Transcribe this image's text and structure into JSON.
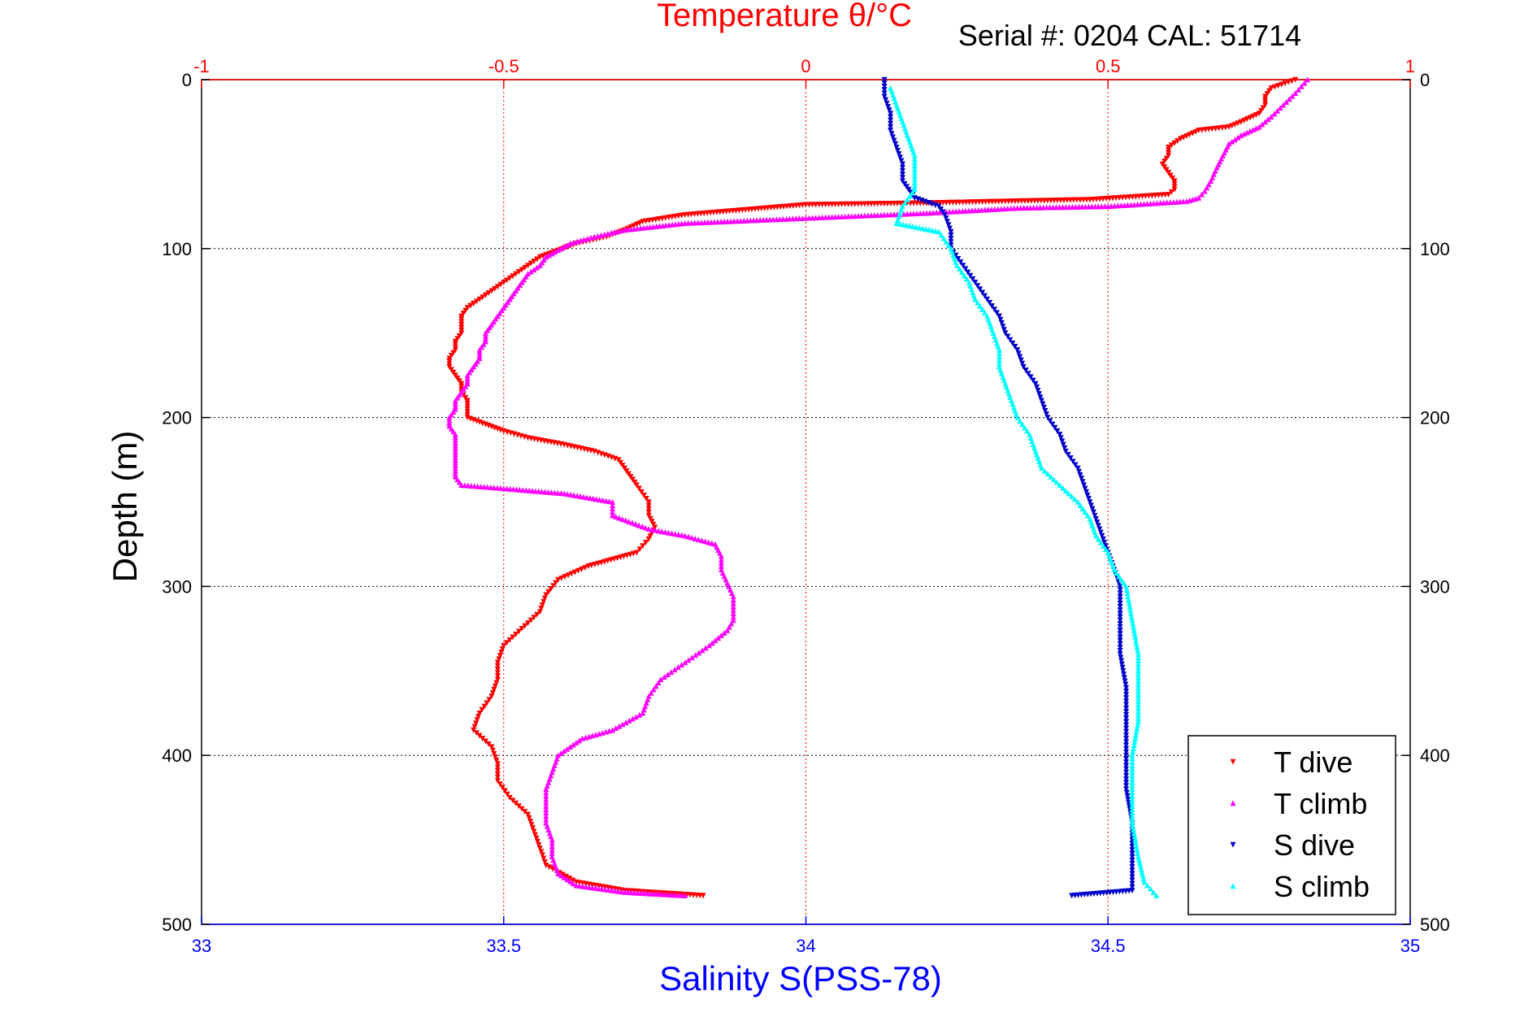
{
  "chart_data": {
    "type": "scatter",
    "title": "Temperature θ/°C",
    "annotation": "Serial #: 0204  CAL: 51714",
    "xlabel_top": "Temperature θ/°C",
    "xlabel_bottom": "Salinity S(PSS-78)",
    "ylabel": "Depth (m)",
    "top_axis": {
      "label": "Temperature θ/°C",
      "range": [
        -1,
        1
      ],
      "ticks": [
        "-1",
        "-0.5",
        "0",
        "0.5",
        "1"
      ],
      "color": "#ff0000"
    },
    "bottom_axis": {
      "label": "Salinity S(PSS-78)",
      "range": [
        33,
        35
      ],
      "ticks": [
        "33",
        "33.5",
        "34",
        "34.5",
        "35"
      ],
      "color": "#0000ff"
    },
    "y_axis": {
      "label": "Depth (m)",
      "range": [
        0,
        500
      ],
      "reversed": true,
      "ticks": [
        "0",
        "100",
        "200",
        "300",
        "400",
        "500"
      ]
    },
    "grid": true,
    "legend_position": "bottom-right",
    "series": [
      {
        "name": "T dive",
        "axis": "temperature",
        "color": "#ff0000",
        "marker": "triangle-down",
        "points": [
          [
            0.81,
            0
          ],
          [
            0.77,
            5
          ],
          [
            0.76,
            10
          ],
          [
            0.76,
            15
          ],
          [
            0.75,
            20
          ],
          [
            0.72,
            25
          ],
          [
            0.7,
            28
          ],
          [
            0.65,
            30
          ],
          [
            0.62,
            35
          ],
          [
            0.6,
            40
          ],
          [
            0.6,
            45
          ],
          [
            0.59,
            50
          ],
          [
            0.6,
            55
          ],
          [
            0.61,
            60
          ],
          [
            0.61,
            65
          ],
          [
            0.6,
            68
          ],
          [
            0.47,
            71
          ],
          [
            0.33,
            72
          ],
          [
            0.2,
            73
          ],
          [
            0.0,
            74
          ],
          [
            -0.1,
            77
          ],
          [
            -0.2,
            80
          ],
          [
            -0.27,
            84
          ],
          [
            -0.3,
            89
          ],
          [
            -0.33,
            93
          ],
          [
            -0.38,
            97
          ],
          [
            -0.41,
            101
          ],
          [
            -0.44,
            105
          ],
          [
            -0.46,
            110
          ],
          [
            -0.48,
            115
          ],
          [
            -0.5,
            120
          ],
          [
            -0.52,
            125
          ],
          [
            -0.54,
            130
          ],
          [
            -0.56,
            135
          ],
          [
            -0.57,
            140
          ],
          [
            -0.57,
            145
          ],
          [
            -0.57,
            150
          ],
          [
            -0.58,
            155
          ],
          [
            -0.58,
            160
          ],
          [
            -0.59,
            165
          ],
          [
            -0.59,
            170
          ],
          [
            -0.58,
            175
          ],
          [
            -0.57,
            180
          ],
          [
            -0.57,
            185
          ],
          [
            -0.56,
            190
          ],
          [
            -0.56,
            195
          ],
          [
            -0.56,
            200
          ],
          [
            -0.53,
            204
          ],
          [
            -0.5,
            208
          ],
          [
            -0.46,
            212
          ],
          [
            -0.4,
            216
          ],
          [
            -0.35,
            220
          ],
          [
            -0.31,
            225
          ],
          [
            -0.3,
            230
          ],
          [
            -0.29,
            235
          ],
          [
            -0.28,
            240
          ],
          [
            -0.26,
            250
          ],
          [
            -0.26,
            258
          ],
          [
            -0.25,
            265
          ],
          [
            -0.26,
            272
          ],
          [
            -0.28,
            280
          ],
          [
            -0.36,
            288
          ],
          [
            -0.41,
            296
          ],
          [
            -0.43,
            305
          ],
          [
            -0.44,
            315
          ],
          [
            -0.47,
            325
          ],
          [
            -0.5,
            335
          ],
          [
            -0.51,
            345
          ],
          [
            -0.51,
            355
          ],
          [
            -0.52,
            365
          ],
          [
            -0.54,
            375
          ],
          [
            -0.55,
            385
          ],
          [
            -0.52,
            395
          ],
          [
            -0.51,
            405
          ],
          [
            -0.51,
            415
          ],
          [
            -0.49,
            425
          ],
          [
            -0.46,
            435
          ],
          [
            -0.45,
            445
          ],
          [
            -0.44,
            455
          ],
          [
            -0.43,
            465
          ],
          [
            -0.38,
            475
          ],
          [
            -0.3,
            480
          ],
          [
            -0.17,
            483
          ]
        ]
      },
      {
        "name": "T climb",
        "axis": "temperature",
        "color": "#ff00ff",
        "marker": "triangle-up",
        "points": [
          [
            0.83,
            0
          ],
          [
            0.81,
            8
          ],
          [
            0.79,
            15
          ],
          [
            0.77,
            22
          ],
          [
            0.75,
            28
          ],
          [
            0.72,
            33
          ],
          [
            0.7,
            38
          ],
          [
            0.69,
            45
          ],
          [
            0.68,
            52
          ],
          [
            0.67,
            60
          ],
          [
            0.66,
            66
          ],
          [
            0.65,
            70
          ],
          [
            0.63,
            72
          ],
          [
            0.5,
            75
          ],
          [
            0.35,
            76
          ],
          [
            0.2,
            79
          ],
          [
            0.0,
            82
          ],
          [
            -0.2,
            85
          ],
          [
            -0.3,
            89
          ],
          [
            -0.35,
            93
          ],
          [
            -0.39,
            97
          ],
          [
            -0.41,
            101
          ],
          [
            -0.43,
            105
          ],
          [
            -0.44,
            110
          ],
          [
            -0.46,
            115
          ],
          [
            -0.47,
            120
          ],
          [
            -0.48,
            125
          ],
          [
            -0.49,
            130
          ],
          [
            -0.5,
            135
          ],
          [
            -0.51,
            140
          ],
          [
            -0.52,
            145
          ],
          [
            -0.53,
            150
          ],
          [
            -0.53,
            155
          ],
          [
            -0.54,
            160
          ],
          [
            -0.54,
            165
          ],
          [
            -0.55,
            170
          ],
          [
            -0.56,
            175
          ],
          [
            -0.56,
            180
          ],
          [
            -0.57,
            185
          ],
          [
            -0.58,
            190
          ],
          [
            -0.58,
            195
          ],
          [
            -0.59,
            200
          ],
          [
            -0.59,
            205
          ],
          [
            -0.58,
            210
          ],
          [
            -0.58,
            215
          ],
          [
            -0.58,
            220
          ],
          [
            -0.58,
            225
          ],
          [
            -0.58,
            230
          ],
          [
            -0.58,
            235
          ],
          [
            -0.57,
            240
          ],
          [
            -0.5,
            242
          ],
          [
            -0.4,
            245
          ],
          [
            -0.32,
            250
          ],
          [
            -0.32,
            258
          ],
          [
            -0.26,
            266
          ],
          [
            -0.2,
            270
          ],
          [
            -0.15,
            275
          ],
          [
            -0.14,
            282
          ],
          [
            -0.14,
            290
          ],
          [
            -0.13,
            298
          ],
          [
            -0.12,
            306
          ],
          [
            -0.12,
            314
          ],
          [
            -0.12,
            320
          ],
          [
            -0.13,
            326
          ],
          [
            -0.16,
            335
          ],
          [
            -0.2,
            345
          ],
          [
            -0.24,
            355
          ],
          [
            -0.26,
            365
          ],
          [
            -0.27,
            375
          ],
          [
            -0.32,
            385
          ],
          [
            -0.37,
            390
          ],
          [
            -0.39,
            395
          ],
          [
            -0.41,
            400
          ],
          [
            -0.42,
            410
          ],
          [
            -0.43,
            420
          ],
          [
            -0.43,
            430
          ],
          [
            -0.43,
            440
          ],
          [
            -0.42,
            450
          ],
          [
            -0.42,
            460
          ],
          [
            -0.41,
            470
          ],
          [
            -0.38,
            477
          ],
          [
            -0.3,
            481
          ],
          [
            -0.2,
            483
          ]
        ]
      },
      {
        "name": "S dive",
        "axis": "salinity",
        "color": "#0000cc",
        "marker": "triangle-down",
        "points": [
          [
            34.13,
            0
          ],
          [
            34.13,
            10
          ],
          [
            34.14,
            20
          ],
          [
            34.14,
            30
          ],
          [
            34.15,
            40
          ],
          [
            34.16,
            50
          ],
          [
            34.16,
            60
          ],
          [
            34.17,
            65
          ],
          [
            34.18,
            70
          ],
          [
            34.22,
            75
          ],
          [
            34.23,
            80
          ],
          [
            34.24,
            90
          ],
          [
            34.24,
            100
          ],
          [
            34.26,
            110
          ],
          [
            34.28,
            120
          ],
          [
            34.3,
            130
          ],
          [
            34.32,
            140
          ],
          [
            34.33,
            150
          ],
          [
            34.35,
            160
          ],
          [
            34.36,
            170
          ],
          [
            34.38,
            180
          ],
          [
            34.39,
            190
          ],
          [
            34.4,
            200
          ],
          [
            34.42,
            210
          ],
          [
            34.43,
            220
          ],
          [
            34.45,
            230
          ],
          [
            34.46,
            240
          ],
          [
            34.47,
            250
          ],
          [
            34.48,
            260
          ],
          [
            34.49,
            270
          ],
          [
            34.5,
            280
          ],
          [
            34.51,
            290
          ],
          [
            34.52,
            300
          ],
          [
            34.52,
            320
          ],
          [
            34.52,
            340
          ],
          [
            34.53,
            360
          ],
          [
            34.53,
            380
          ],
          [
            34.53,
            400
          ],
          [
            34.53,
            420
          ],
          [
            34.54,
            440
          ],
          [
            34.54,
            460
          ],
          [
            34.54,
            480
          ],
          [
            34.44,
            483
          ]
        ]
      },
      {
        "name": "S climb",
        "axis": "salinity",
        "color": "#00ffff",
        "marker": "triangle-up",
        "points": [
          [
            34.14,
            5
          ],
          [
            34.15,
            15
          ],
          [
            34.16,
            25
          ],
          [
            34.17,
            35
          ],
          [
            34.18,
            45
          ],
          [
            34.18,
            55
          ],
          [
            34.18,
            65
          ],
          [
            34.16,
            75
          ],
          [
            34.15,
            85
          ],
          [
            34.22,
            90
          ],
          [
            34.24,
            100
          ],
          [
            34.25,
            110
          ],
          [
            34.27,
            120
          ],
          [
            34.28,
            130
          ],
          [
            34.3,
            140
          ],
          [
            34.31,
            150
          ],
          [
            34.32,
            160
          ],
          [
            34.32,
            170
          ],
          [
            34.33,
            180
          ],
          [
            34.34,
            190
          ],
          [
            34.35,
            200
          ],
          [
            34.37,
            210
          ],
          [
            34.38,
            220
          ],
          [
            34.39,
            230
          ],
          [
            34.42,
            240
          ],
          [
            34.45,
            250
          ],
          [
            34.47,
            260
          ],
          [
            34.48,
            270
          ],
          [
            34.5,
            280
          ],
          [
            34.51,
            290
          ],
          [
            34.53,
            300
          ],
          [
            34.54,
            320
          ],
          [
            34.55,
            340
          ],
          [
            34.55,
            360
          ],
          [
            34.55,
            380
          ],
          [
            34.54,
            400
          ],
          [
            34.54,
            420
          ],
          [
            34.54,
            440
          ],
          [
            34.55,
            460
          ],
          [
            34.56,
            475
          ],
          [
            34.58,
            483
          ]
        ]
      }
    ]
  }
}
